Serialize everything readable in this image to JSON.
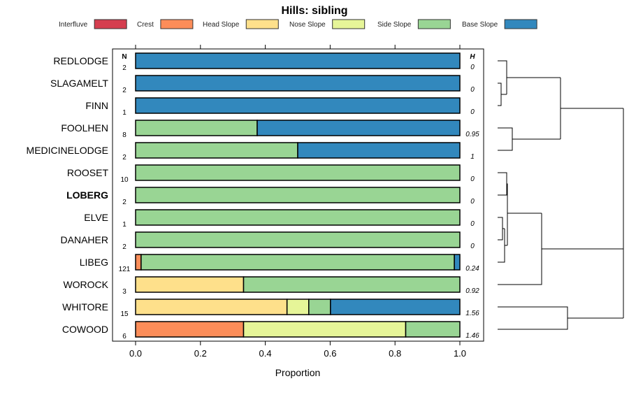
{
  "chart_data": {
    "type": "bar",
    "orientation": "horizontal-stacked",
    "title": "Hills: sibling",
    "xlabel": "Proportion",
    "xlim": [
      0,
      1
    ],
    "xticks": [
      "0.0",
      "0.2",
      "0.4",
      "0.6",
      "0.8",
      "1.0"
    ],
    "n_header": "N",
    "h_header": "H",
    "legend": [
      {
        "name": "Interfluve",
        "color": "#D53E4F"
      },
      {
        "name": "Crest",
        "color": "#FC8D59"
      },
      {
        "name": "Head Slope",
        "color": "#FEE08B"
      },
      {
        "name": "Nose Slope",
        "color": "#E6F598"
      },
      {
        "name": "Side Slope",
        "color": "#99D594"
      },
      {
        "name": "Base Slope",
        "color": "#3288BD"
      }
    ],
    "legend_position": "top",
    "rows": [
      {
        "name": "REDLODGE",
        "bold": false,
        "n": "2",
        "h": "0",
        "values": [
          0,
          0,
          0,
          0,
          0,
          1
        ]
      },
      {
        "name": "SLAGAMELT",
        "bold": false,
        "n": "2",
        "h": "0",
        "values": [
          0,
          0,
          0,
          0,
          0,
          1
        ]
      },
      {
        "name": "FINN",
        "bold": false,
        "n": "1",
        "h": "0",
        "values": [
          0,
          0,
          0,
          0,
          0,
          1
        ]
      },
      {
        "name": "FOOLHEN",
        "bold": false,
        "n": "8",
        "h": "0.95",
        "values": [
          0,
          0,
          0,
          0,
          0.375,
          0.625
        ]
      },
      {
        "name": "MEDICINELODGE",
        "bold": false,
        "n": "2",
        "h": "1",
        "values": [
          0,
          0,
          0,
          0,
          0.5,
          0.5
        ]
      },
      {
        "name": "ROOSET",
        "bold": false,
        "n": "10",
        "h": "0",
        "values": [
          0,
          0,
          0,
          0,
          1,
          0
        ]
      },
      {
        "name": "LOBERG",
        "bold": true,
        "n": "2",
        "h": "0",
        "values": [
          0,
          0,
          0,
          0,
          1,
          0
        ]
      },
      {
        "name": "ELVE",
        "bold": false,
        "n": "1",
        "h": "0",
        "values": [
          0,
          0,
          0,
          0,
          1,
          0
        ]
      },
      {
        "name": "DANAHER",
        "bold": false,
        "n": "2",
        "h": "0",
        "values": [
          0,
          0,
          0,
          0,
          1,
          0
        ]
      },
      {
        "name": "LIBEG",
        "bold": false,
        "n": "121",
        "h": "0.24",
        "values": [
          0,
          0.017,
          0,
          0,
          0.966,
          0.017
        ]
      },
      {
        "name": "WOROCK",
        "bold": false,
        "n": "3",
        "h": "0.92",
        "values": [
          0,
          0,
          0.333,
          0,
          0.667,
          0
        ]
      },
      {
        "name": "WHITORE",
        "bold": false,
        "n": "15",
        "h": "1.56",
        "values": [
          0,
          0,
          0.467,
          0.067,
          0.067,
          0.4
        ]
      },
      {
        "name": "COWOOD",
        "bold": false,
        "n": "6",
        "h": "1.46",
        "values": [
          0,
          0.333,
          0,
          0.5,
          0.167,
          0
        ]
      }
    ]
  }
}
